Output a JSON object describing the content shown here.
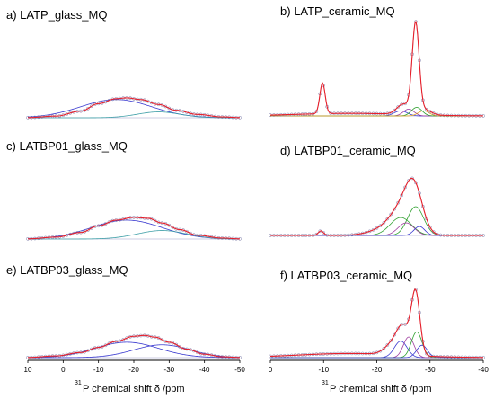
{
  "chart_data": [
    {
      "type": "line",
      "title": "a) LATP_glass_MQ",
      "x_range": [
        10,
        -50
      ],
      "series": [
        {
          "role": "fit",
          "color": "#e8202a",
          "points": [
            [
              10,
              0.2
            ],
            [
              2,
              2
            ],
            [
              -5,
              8
            ],
            [
              -10,
              17
            ],
            [
              -15,
              23
            ],
            [
              -18,
              24
            ],
            [
              -22,
              22
            ],
            [
              -27,
              16
            ],
            [
              -32,
              9
            ],
            [
              -38,
              4
            ],
            [
              -45,
              1
            ],
            [
              -50,
              0.2
            ]
          ]
        },
        {
          "role": "data",
          "color": "#9a9ac8",
          "points": [
            [
              10,
              0.2
            ],
            [
              2,
              2
            ],
            [
              -5,
              8
            ],
            [
              -10,
              17
            ],
            [
              -15,
              23
            ],
            [
              -18,
              24
            ],
            [
              -22,
              22
            ],
            [
              -27,
              16
            ],
            [
              -32,
              9
            ],
            [
              -38,
              4
            ],
            [
              -45,
              1
            ],
            [
              -50,
              0.2
            ]
          ]
        },
        {
          "role": "component",
          "color": "#3a3ad0",
          "center": -15,
          "amp": 22,
          "width": 10
        },
        {
          "role": "component",
          "color": "#40a0a8",
          "center": -27,
          "amp": 7,
          "width": 6
        }
      ]
    },
    {
      "type": "line",
      "title": "b) LATP_ceramic_MQ",
      "x_range": [
        0,
        -40
      ],
      "series": [
        {
          "role": "fit",
          "color": "#e8202a",
          "peaks": [
            [
              -9.8,
              36,
              0.5
            ],
            [
              -27.3,
              105,
              0.65
            ],
            [
              -25,
              12,
              1.2
            ],
            [
              -29,
              6,
              1.2
            ],
            [
              -15,
              3,
              10
            ]
          ]
        },
        {
          "role": "data",
          "color": "#9a9ac8",
          "peaks": [
            [
              -9.8,
              36,
              0.5
            ],
            [
              -27.3,
              105,
              0.65
            ],
            [
              -25,
              12,
              1.2
            ],
            [
              -29,
              6,
              1.2
            ],
            [
              -15,
              3,
              10
            ]
          ]
        },
        {
          "role": "component",
          "color": "#3a3ad0",
          "center": -24.5,
          "amp": 6,
          "width": 1.2
        },
        {
          "role": "component",
          "color": "#a040a0",
          "center": -26,
          "amp": 8,
          "width": 1
        },
        {
          "role": "component",
          "color": "#2fa02f",
          "center": -27.5,
          "amp": 10,
          "width": 1
        },
        {
          "role": "component",
          "color": "#e0a020",
          "center": -28.8,
          "amp": 6,
          "width": 1
        }
      ]
    },
    {
      "type": "line",
      "title": "c) LATBP01_glass_MQ",
      "x_range": [
        10,
        -50
      ],
      "series": [
        {
          "role": "fit",
          "color": "#e8202a",
          "points": [
            [
              10,
              0.2
            ],
            [
              2,
              2
            ],
            [
              -5,
              7
            ],
            [
              -10,
              14
            ],
            [
              -15,
              20
            ],
            [
              -20,
              23
            ],
            [
              -24,
              22
            ],
            [
              -28,
              17
            ],
            [
              -33,
              10
            ],
            [
              -38,
              4
            ],
            [
              -45,
              1
            ],
            [
              -50,
              0.2
            ]
          ]
        },
        {
          "role": "data",
          "color": "#9a9ac8",
          "points": [
            [
              10,
              0.2
            ],
            [
              2,
              2
            ],
            [
              -5,
              7
            ],
            [
              -10,
              14
            ],
            [
              -15,
              20
            ],
            [
              -20,
              23
            ],
            [
              -24,
              22
            ],
            [
              -28,
              17
            ],
            [
              -33,
              10
            ],
            [
              -38,
              4
            ],
            [
              -45,
              1
            ],
            [
              -50,
              0.2
            ]
          ]
        },
        {
          "role": "component",
          "color": "#3a3ad0",
          "center": -18,
          "amp": 20,
          "width": 10
        },
        {
          "role": "component",
          "color": "#40a0a8",
          "center": -28,
          "amp": 9,
          "width": 7
        }
      ]
    },
    {
      "type": "line",
      "title": "d) LATBP01_ceramic_MQ",
      "x_range": [
        0,
        -40
      ],
      "series": [
        {
          "role": "fit",
          "color": "#e8202a",
          "peaks": [
            [
              -9.5,
              5,
              0.5
            ],
            [
              -27,
              50,
              1.6
            ],
            [
              -24.5,
              22,
              2
            ],
            [
              -22,
              8,
              3
            ]
          ]
        },
        {
          "role": "data",
          "color": "#9a9ac8",
          "peaks": [
            [
              -9.5,
              5,
              0.5
            ],
            [
              -27,
              50,
              1.6
            ],
            [
              -24.5,
              22,
              2
            ],
            [
              -22,
              8,
              3
            ]
          ]
        },
        {
          "role": "component",
          "color": "#2fa02f",
          "center": -27.3,
          "amp": 32,
          "width": 1.5
        },
        {
          "role": "component",
          "color": "#2fa02f",
          "center": -24.5,
          "amp": 20,
          "width": 2
        },
        {
          "role": "component",
          "color": "#a040a0",
          "center": -25.5,
          "amp": 14,
          "width": 1.5
        },
        {
          "role": "component",
          "color": "#3a3ad0",
          "center": -28,
          "amp": 10,
          "width": 1
        }
      ]
    },
    {
      "type": "line",
      "title": "e) LATBP03_glass_MQ",
      "x_range": [
        10,
        -50
      ],
      "series": [
        {
          "role": "fit",
          "color": "#e8202a",
          "points": [
            [
              10,
              0.2
            ],
            [
              2,
              2
            ],
            [
              -5,
              6
            ],
            [
              -10,
              12
            ],
            [
              -15,
              19
            ],
            [
              -20,
              25
            ],
            [
              -23,
              26
            ],
            [
              -26,
              24
            ],
            [
              -30,
              18
            ],
            [
              -35,
              10
            ],
            [
              -40,
              4
            ],
            [
              -45,
              1
            ],
            [
              -50,
              0.2
            ]
          ]
        },
        {
          "role": "data",
          "color": "#9a9ac8",
          "points": [
            [
              10,
              0.2
            ],
            [
              2,
              2
            ],
            [
              -5,
              6
            ],
            [
              -10,
              12
            ],
            [
              -15,
              19
            ],
            [
              -20,
              25
            ],
            [
              -23,
              26
            ],
            [
              -26,
              24
            ],
            [
              -30,
              18
            ],
            [
              -35,
              10
            ],
            [
              -40,
              4
            ],
            [
              -45,
              1
            ],
            [
              -50,
              0.2
            ]
          ]
        },
        {
          "role": "component",
          "color": "#3a3ad0",
          "center": -18,
          "amp": 18,
          "width": 9
        },
        {
          "role": "component",
          "color": "#3a3ad0",
          "center": -28,
          "amp": 15,
          "width": 8
        }
      ]
    },
    {
      "type": "line",
      "title": "f) LATBP03_ceramic_MQ",
      "x_range": [
        0,
        -40
      ],
      "series": [
        {
          "role": "fit",
          "color": "#e8202a",
          "peaks": [
            [
              -27.3,
              60,
              0.8
            ],
            [
              -25,
              25,
              1.2
            ],
            [
              -23,
              10,
              1.5
            ],
            [
              -15,
              4,
              10
            ]
          ]
        },
        {
          "role": "data",
          "color": "#9a9ac8",
          "peaks": [
            [
              -27.3,
              60,
              0.8
            ],
            [
              -25,
              25,
              1.2
            ],
            [
              -23,
              10,
              1.5
            ],
            [
              -15,
              4,
              10
            ]
          ]
        },
        {
          "role": "component",
          "color": "#3a3ad0",
          "center": -24.5,
          "amp": 16,
          "width": 1.2
        },
        {
          "role": "component",
          "color": "#a040a0",
          "center": -26,
          "amp": 20,
          "width": 1
        },
        {
          "role": "component",
          "color": "#2fa02f",
          "center": -27.5,
          "amp": 25,
          "width": 1
        },
        {
          "role": "component",
          "color": "#3a3ad0",
          "center": -28.5,
          "amp": 12,
          "width": 1
        }
      ]
    }
  ],
  "axes": {
    "left": {
      "ticks": [
        "10",
        "0",
        "-10",
        "-20",
        "-30",
        "-40",
        "-50"
      ],
      "label_sup": "31",
      "label": "P chemical shift δ /ppm"
    },
    "right": {
      "ticks": [
        "0",
        "-10",
        "-20",
        "-30",
        "-40"
      ],
      "label_sup": "31",
      "label": "P chemical shift δ /ppm"
    }
  }
}
